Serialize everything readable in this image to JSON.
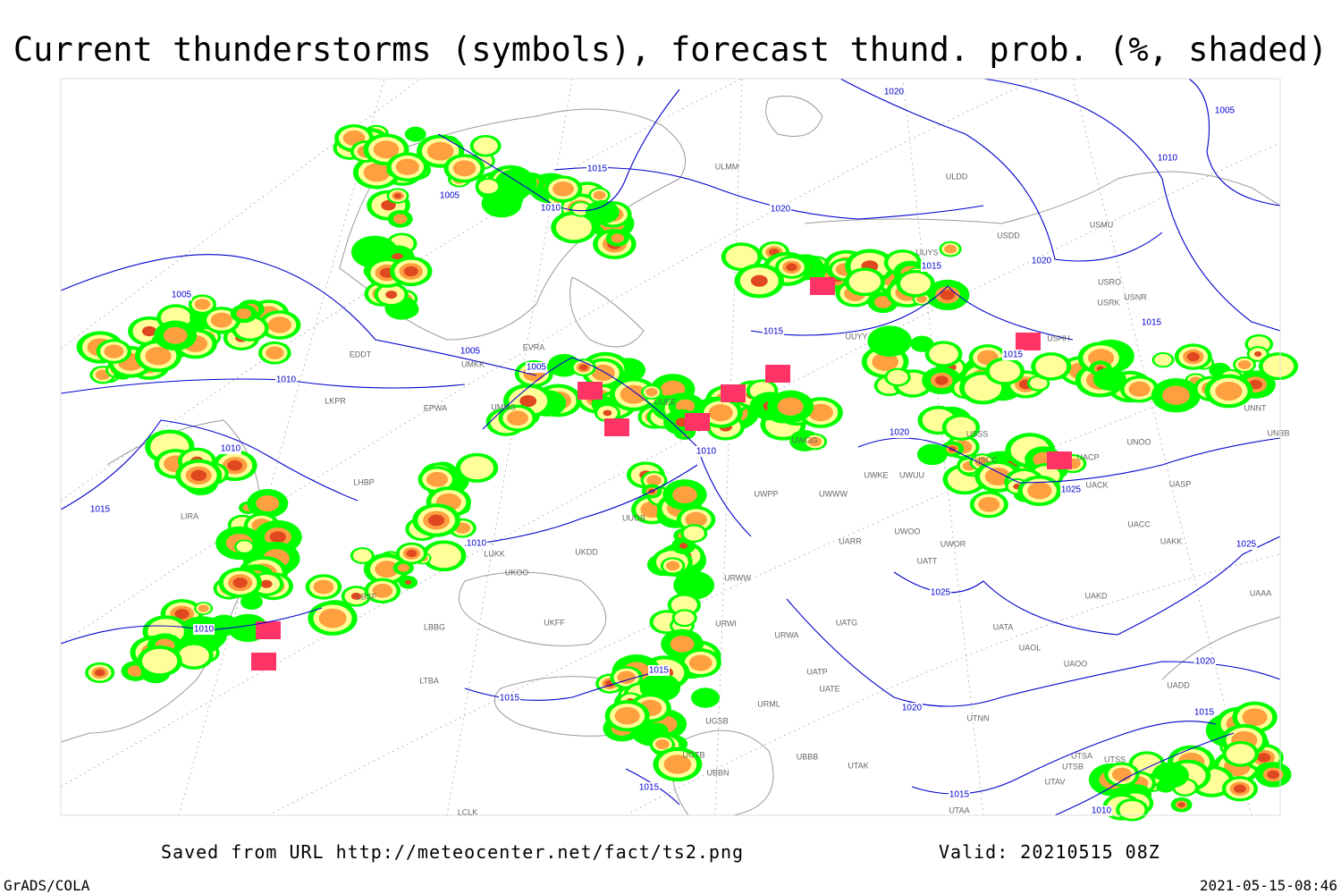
{
  "title": "Current thunderstorms (symbols), forecast thund. prob. (%, shaded)",
  "footer": {
    "source": "Saved from URL http://meteocenter.net/fact/ts2.png",
    "valid": "Valid: 20210515 08Z",
    "software": "GrADS/COLA",
    "timestamp": "2021-05-15-08:46"
  },
  "isobar_labels": [
    1020,
    1005,
    1010,
    1005,
    1015,
    1010,
    1020,
    1020,
    1015,
    1005,
    1015,
    1015,
    1015,
    1005,
    1005,
    1010,
    1010,
    1020,
    1010,
    1015,
    1010,
    1025,
    1025,
    1025,
    1010,
    1020,
    1015,
    1015,
    1020,
    1015,
    1015,
    1015,
    1010
  ],
  "stations": [
    "ULMM",
    "ULDD",
    "USDD",
    "USMU",
    "UUYS",
    "USRO",
    "USRK",
    "USNR",
    "USHH",
    "UUYY",
    "EDDT",
    "UMKK",
    "EVRA",
    "EPWA",
    "LKPR",
    "UMMS",
    "UWWW",
    "UWPP",
    "UWKE",
    "UWUU",
    "USCC",
    "USSS",
    "UNOO",
    "UNNT",
    "UNBB",
    "UACP",
    "UACK",
    "UASP",
    "UACC",
    "UAKK",
    "UARR",
    "UWOO",
    "UWOR",
    "UATT",
    "UAKD",
    "UATG",
    "UATA",
    "UAOL",
    "UAOO",
    "UTNN",
    "UADD",
    "UAAA",
    "UTSA",
    "UTSS",
    "UTSB",
    "UTAV",
    "UTAA",
    "UTAK",
    "UBBB",
    "UUOB",
    "UKDD",
    "UKOO",
    "LUKK",
    "UKFF",
    "LBBG",
    "LTBA",
    "LIRA",
    "LBSF",
    "LHBP",
    "LCLK",
    "URWW",
    "URWI",
    "URWA",
    "URML",
    "UATE",
    "UATP",
    "UGSB",
    "UBBN",
    "UGTB",
    "UUEE",
    "UWGG"
  ]
}
